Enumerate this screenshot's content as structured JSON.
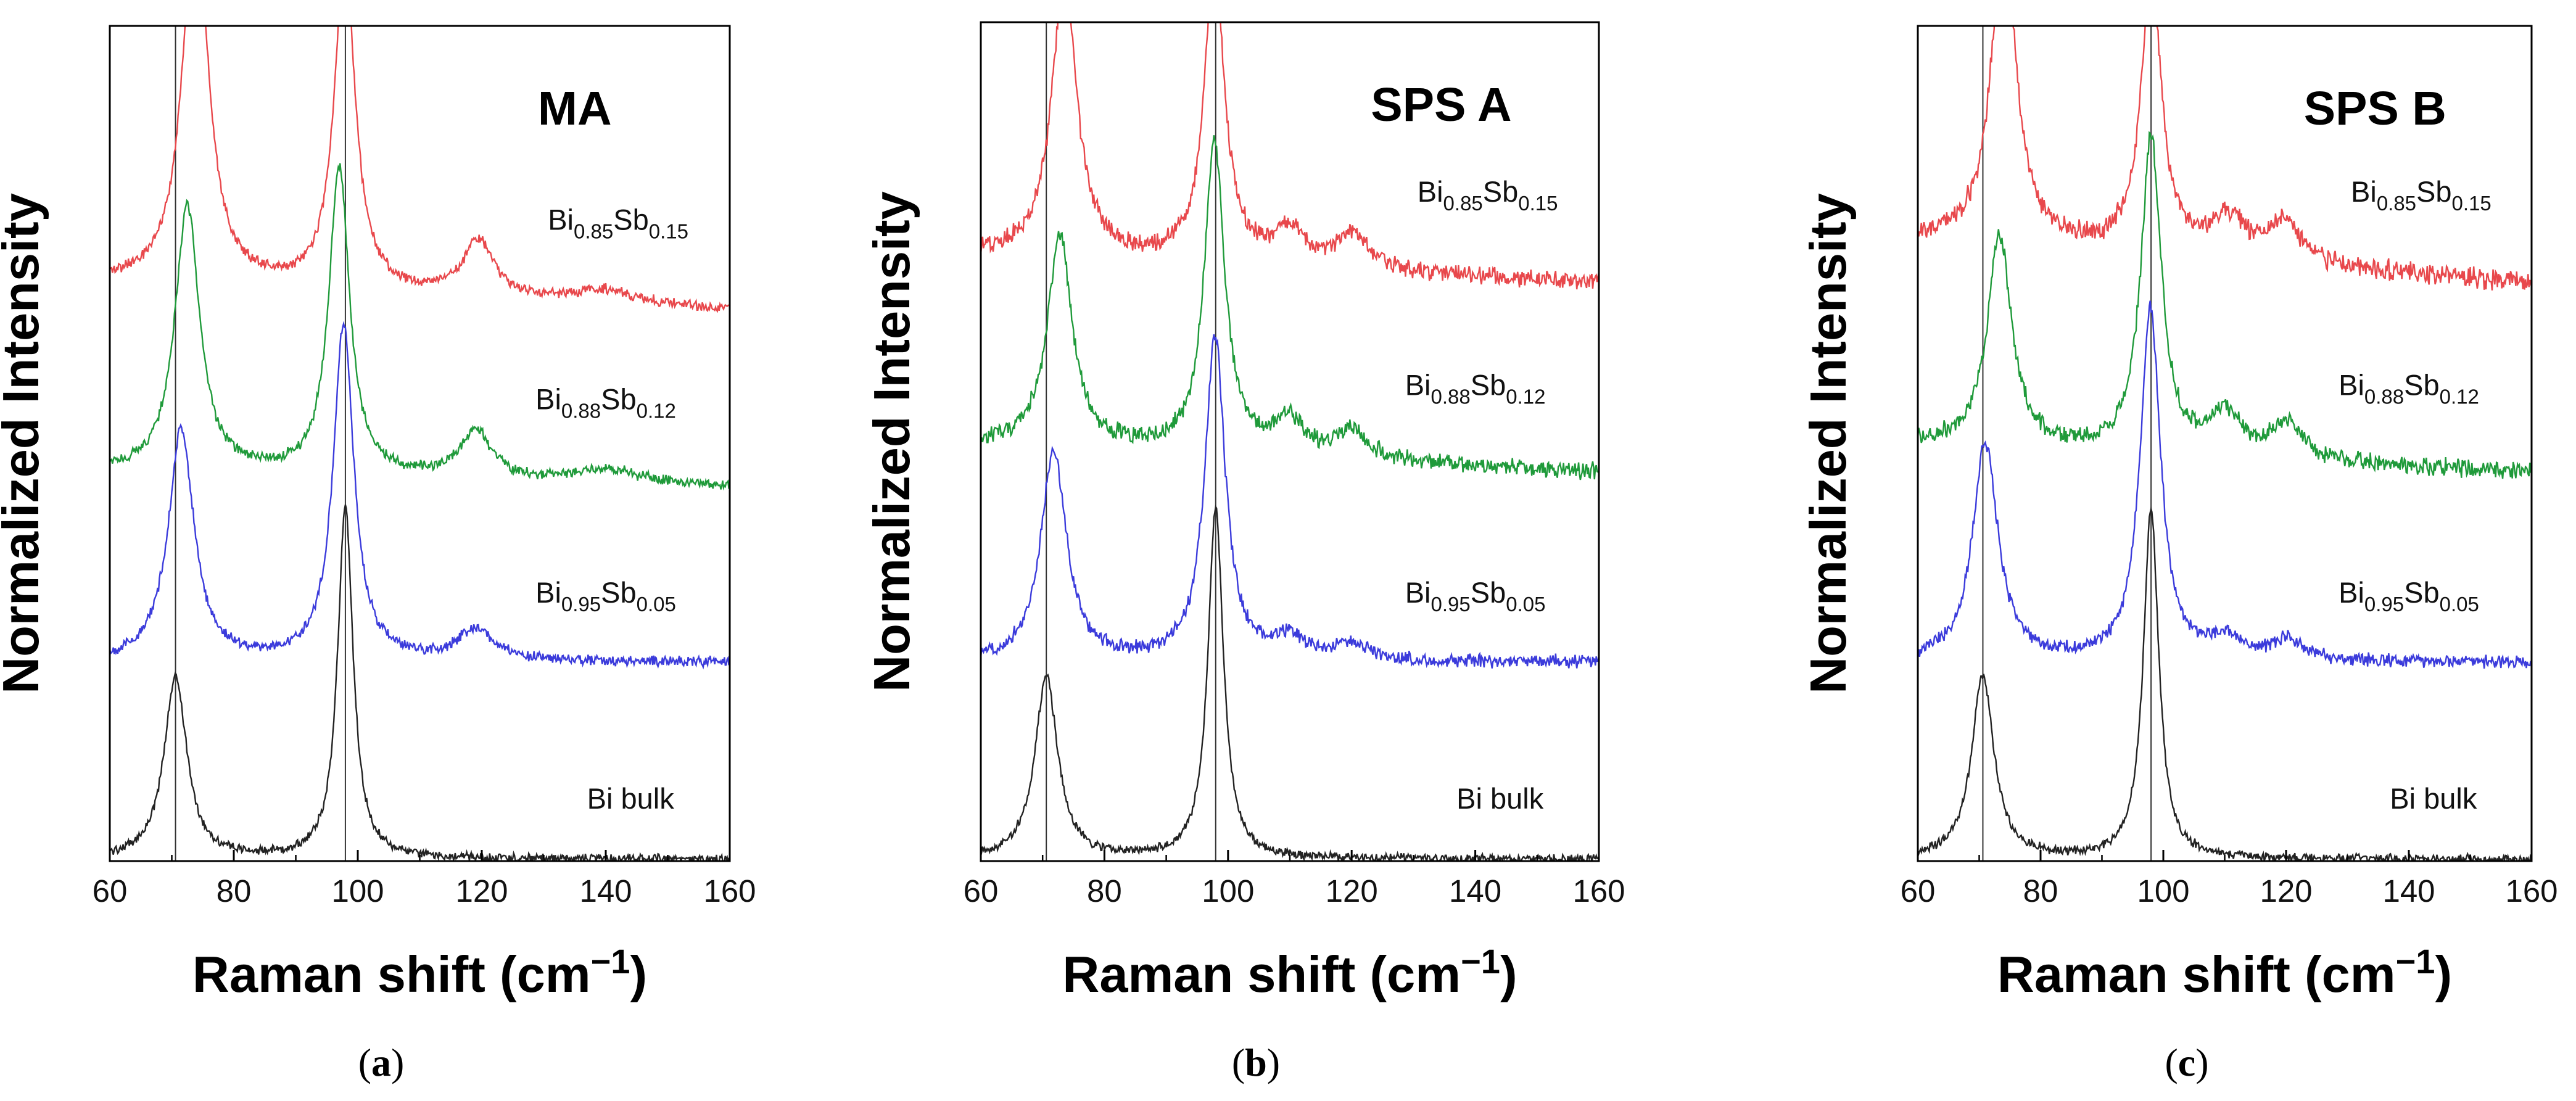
{
  "chart_data": [
    {
      "type": "line",
      "panel": "(a)",
      "caption_open": "(",
      "caption_letter": "a",
      "caption_close": ")",
      "title": "MA",
      "xlabel": "Raman shift (cm",
      "xlabel_sup": "−1",
      "xlabel_close": ")",
      "ylabel": "Normalized Intensity",
      "xlim": [
        60,
        160
      ],
      "xticks": [
        "60",
        "80",
        "100",
        "120",
        "140",
        "160"
      ],
      "reference_lines_x": [
        70.6,
        98.0
      ],
      "series": [
        {
          "name": "Bi bulk",
          "label_base": "Bi bulk",
          "color": "#222222",
          "offset": 0.0,
          "baseline": 0.0,
          "noise": 0.005,
          "peaks": [
            {
              "x": 70.6,
              "height": 0.26,
              "width": 2.2
            },
            {
              "x": 98.0,
              "height": 0.5,
              "width": 1.5
            }
          ]
        },
        {
          "name": "Bi0.95Sb0.05",
          "label_base": "Bi",
          "label_sub1": "0.95",
          "label_mid": "Sb",
          "label_sub2": "0.05",
          "color": "#3b3bdb",
          "offset": 0.28,
          "baseline": 0.0,
          "noise": 0.006,
          "peaks": [
            {
              "x": 71.5,
              "height": 0.33,
              "width": 2.5
            },
            {
              "x": 97.7,
              "height": 0.48,
              "width": 2.0
            },
            {
              "x": 119.0,
              "height": 0.045,
              "width": 3.5
            }
          ]
        },
        {
          "name": "Bi0.88Sb0.12",
          "label_base": "Bi",
          "label_sub1": "0.88",
          "label_mid": "Sb",
          "label_sub2": "0.12",
          "color": "#1f9a3a",
          "offset": 0.53,
          "baseline": 0.02,
          "noise": 0.006,
          "peaks": [
            {
              "x": 72.5,
              "height": 0.38,
              "width": 2.4
            },
            {
              "x": 97.0,
              "height": 0.44,
              "width": 2.0
            },
            {
              "x": 119.0,
              "height": 0.07,
              "width": 3.0
            },
            {
              "x": 140.0,
              "height": 0.02,
              "width": 6.0
            }
          ]
        },
        {
          "name": "Bi0.85Sb0.15",
          "label_base": "Bi",
          "label_sub1": "0.85",
          "label_mid": "Sb",
          "label_sub2": "0.15",
          "color": "#e8484c",
          "offset": 0.78,
          "baseline": 0.04,
          "noise": 0.006,
          "peaks": [
            {
              "x": 73.8,
              "height": 0.55,
              "width": 2.4
            },
            {
              "x": 97.9,
              "height": 0.48,
              "width": 2.0
            },
            {
              "x": 119.5,
              "height": 0.08,
              "width": 3.0
            },
            {
              "x": 140.0,
              "height": 0.02,
              "width": 6.0
            }
          ]
        }
      ]
    },
    {
      "type": "line",
      "panel": "(b)",
      "caption_open": "(",
      "caption_letter": "b",
      "caption_close": ")",
      "title": "SPS A",
      "xlabel": "Raman shift (cm",
      "xlabel_sup": "−1",
      "xlabel_close": ")",
      "ylabel": "Normalized Intensity",
      "xlim": [
        60,
        160
      ],
      "xticks": [
        "60",
        "80",
        "100",
        "120",
        "140",
        "160"
      ],
      "reference_lines_x": [
        70.6,
        98.0
      ],
      "series": [
        {
          "name": "Bi bulk",
          "label_base": "Bi bulk",
          "color": "#222222",
          "offset": 0.0,
          "baseline": 0.0,
          "noise": 0.005,
          "peaks": [
            {
              "x": 70.6,
              "height": 0.26,
              "width": 2.2
            },
            {
              "x": 98.0,
              "height": 0.5,
              "width": 1.5
            }
          ]
        },
        {
          "name": "Bi0.95Sb0.05",
          "label_base": "Bi",
          "label_sub1": "0.95",
          "label_mid": "Sb",
          "label_sub2": "0.05",
          "color": "#3b3bdb",
          "offset": 0.28,
          "baseline": 0.0,
          "noise": 0.008,
          "peaks": [
            {
              "x": 71.8,
              "height": 0.3,
              "width": 2.5
            },
            {
              "x": 97.9,
              "height": 0.46,
              "width": 2.0
            },
            {
              "x": 110.0,
              "height": 0.03,
              "width": 3.0
            },
            {
              "x": 120.0,
              "height": 0.025,
              "width": 3.0
            }
          ]
        },
        {
          "name": "Bi0.88Sb0.12",
          "label_base": "Bi",
          "label_sub1": "0.88",
          "label_mid": "Sb",
          "label_sub2": "0.12",
          "color": "#1f9a3a",
          "offset": 0.55,
          "baseline": 0.04,
          "noise": 0.01,
          "peaks": [
            {
              "x": 72.8,
              "height": 0.3,
              "width": 2.4
            },
            {
              "x": 97.8,
              "height": 0.44,
              "width": 2.0
            },
            {
              "x": 110.0,
              "height": 0.05,
              "width": 3.0
            },
            {
              "x": 120.0,
              "height": 0.04,
              "width": 3.0
            }
          ]
        },
        {
          "name": "Bi0.85Sb0.15",
          "label_base": "Bi",
          "label_sub1": "0.85",
          "label_mid": "Sb",
          "label_sub2": "0.15",
          "color": "#e8484c",
          "offset": 0.82,
          "baseline": 0.04,
          "noise": 0.01,
          "peaks": [
            {
              "x": 73.5,
              "height": 0.4,
              "width": 2.4
            },
            {
              "x": 97.8,
              "height": 0.42,
              "width": 2.0
            },
            {
              "x": 110.0,
              "height": 0.05,
              "width": 3.0
            },
            {
              "x": 120.0,
              "height": 0.05,
              "width": 3.0
            }
          ]
        }
      ]
    },
    {
      "type": "line",
      "panel": "(c)",
      "caption_open": "(",
      "caption_letter": "c",
      "caption_close": ")",
      "title": "SPS B",
      "xlabel": "Raman shift (cm",
      "xlabel_sup": "−1",
      "xlabel_close": ")",
      "ylabel": "Normalized Intensity",
      "xlim": [
        60,
        160
      ],
      "xticks": [
        "60",
        "80",
        "100",
        "120",
        "140",
        "160"
      ],
      "reference_lines_x": [
        70.6,
        98.0
      ],
      "series": [
        {
          "name": "Bi bulk",
          "label_base": "Bi bulk",
          "color": "#222222",
          "offset": 0.0,
          "baseline": 0.0,
          "noise": 0.005,
          "peaks": [
            {
              "x": 70.6,
              "height": 0.26,
              "width": 2.2
            },
            {
              "x": 98.0,
              "height": 0.5,
              "width": 1.5
            }
          ]
        },
        {
          "name": "Bi0.95Sb0.05",
          "label_base": "Bi",
          "label_sub1": "0.95",
          "label_mid": "Sb",
          "label_sub2": "0.05",
          "color": "#3b3bdb",
          "offset": 0.28,
          "baseline": 0.0,
          "noise": 0.008,
          "peaks": [
            {
              "x": 71.0,
              "height": 0.31,
              "width": 2.5
            },
            {
              "x": 97.9,
              "height": 0.5,
              "width": 2.0
            },
            {
              "x": 110.0,
              "height": 0.03,
              "width": 3.0
            },
            {
              "x": 120.0,
              "height": 0.03,
              "width": 3.0
            }
          ]
        },
        {
          "name": "Bi0.88Sb0.12",
          "label_base": "Bi",
          "label_sub1": "0.88",
          "label_mid": "Sb",
          "label_sub2": "0.12",
          "color": "#1f9a3a",
          "offset": 0.55,
          "baseline": 0.04,
          "noise": 0.01,
          "peaks": [
            {
              "x": 73.3,
              "height": 0.3,
              "width": 2.4
            },
            {
              "x": 98.0,
              "height": 0.45,
              "width": 2.0
            },
            {
              "x": 110.0,
              "height": 0.06,
              "width": 3.0
            },
            {
              "x": 120.0,
              "height": 0.05,
              "width": 3.0
            }
          ]
        },
        {
          "name": "Bi0.85Sb0.15",
          "label_base": "Bi",
          "label_sub1": "0.85",
          "label_mid": "Sb",
          "label_sub2": "0.15",
          "color": "#e8484c",
          "offset": 0.82,
          "baseline": 0.06,
          "noise": 0.012,
          "peaks": [
            {
              "x": 74.0,
              "height": 0.45,
              "width": 2.4
            },
            {
              "x": 98.0,
              "height": 0.4,
              "width": 2.0
            },
            {
              "x": 110.5,
              "height": 0.06,
              "width": 3.0
            },
            {
              "x": 119.5,
              "height": 0.06,
              "width": 3.0
            }
          ]
        }
      ]
    }
  ]
}
